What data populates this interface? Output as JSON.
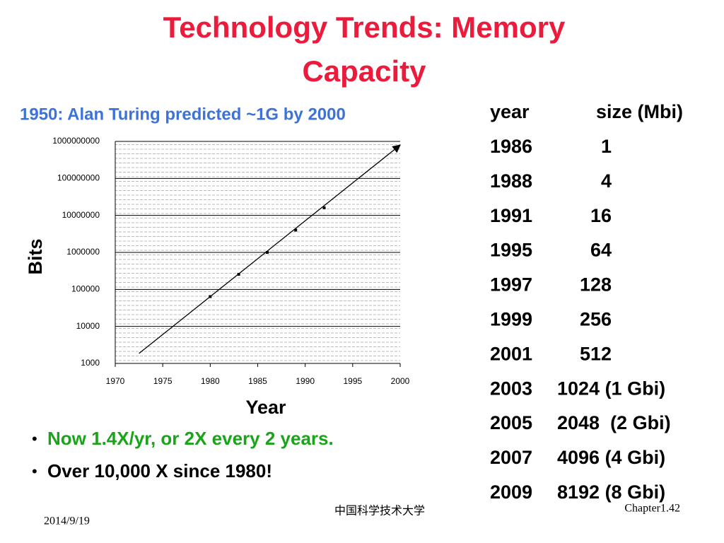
{
  "title": "Technology Trends: Memory Capacity",
  "subtitle": "1950: Alan Turing predicted ~1G by 2000",
  "chart_data": {
    "type": "scatter",
    "log_scale": true,
    "grid": true,
    "xlabel": "Year",
    "ylabel": "Bits",
    "xlim": [
      1970,
      2000
    ],
    "xticks": [
      1970,
      1975,
      1980,
      1985,
      1990,
      1995,
      2000
    ],
    "ylim": [
      1000,
      1000000000
    ],
    "yticks": [
      1000,
      10000,
      100000,
      1000000,
      10000000,
      100000000,
      1000000000
    ],
    "series": [
      {
        "type": "scatter",
        "color": "#000000",
        "x": [
          1980,
          1983,
          1986,
          1989,
          1992
        ],
        "values": [
          64000,
          256000,
          1000000,
          4000000,
          16000000
        ]
      },
      {
        "type": "line",
        "arrow": true,
        "color": "#000000",
        "x": [
          1972.5,
          2000
        ],
        "values": [
          1860,
          800000000
        ]
      }
    ]
  },
  "table": {
    "header": [
      "year",
      "size (Mbi)"
    ],
    "rows": [
      [
        "1986",
        "1"
      ],
      [
        "1988",
        "4"
      ],
      [
        "1991",
        "16"
      ],
      [
        "1995",
        "64"
      ],
      [
        "1997",
        "128"
      ],
      [
        "1999",
        "256"
      ],
      [
        "2001",
        "512"
      ],
      [
        "2003",
        "1024 (1 Gbi)"
      ],
      [
        "2005",
        "2048  (2 Gbi)"
      ],
      [
        "2007",
        "4096 (4 Gbi)"
      ],
      [
        "2009",
        "8192 (8 Gbi)"
      ]
    ]
  },
  "bullets": [
    "Now 1.4X/yr, or 2X every 2 years.",
    "Over 10,000 X since 1980!"
  ],
  "footer": {
    "date": "2014/9/19",
    "institution": "中国科学技术大学",
    "page": "Chapter1.42"
  }
}
